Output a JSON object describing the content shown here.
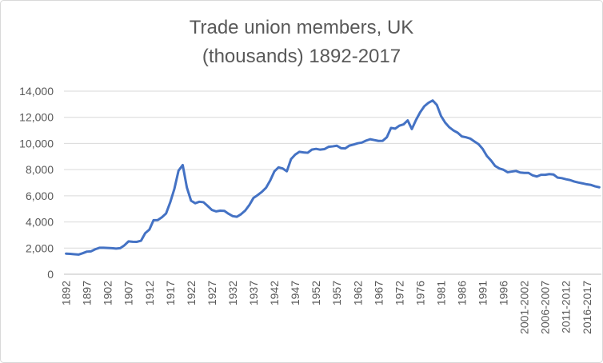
{
  "chart_data": {
    "type": "line",
    "title": [
      "Trade union members, UK",
      "(thousands) 1892-2017"
    ],
    "categories": [
      "1892",
      null,
      null,
      null,
      null,
      "1897",
      null,
      null,
      null,
      null,
      "1902",
      null,
      null,
      null,
      null,
      "1907",
      null,
      null,
      null,
      null,
      "1912",
      null,
      null,
      null,
      null,
      "1917",
      null,
      null,
      null,
      null,
      "1922",
      null,
      null,
      null,
      null,
      "1927",
      null,
      null,
      null,
      null,
      "1932",
      null,
      null,
      null,
      null,
      "1937",
      null,
      null,
      null,
      null,
      "1942",
      null,
      null,
      null,
      null,
      "1947",
      null,
      null,
      null,
      null,
      "1952",
      null,
      null,
      null,
      null,
      "1957",
      null,
      null,
      null,
      null,
      "1962",
      null,
      null,
      null,
      null,
      "1967",
      null,
      null,
      null,
      null,
      "1972",
      null,
      null,
      null,
      null,
      "1976",
      null,
      null,
      null,
      null,
      "1981",
      null,
      null,
      null,
      null,
      "1986",
      null,
      null,
      null,
      null,
      "1991",
      null,
      null,
      null,
      null,
      "1996",
      null,
      null,
      null,
      null,
      "2001-2002",
      null,
      null,
      null,
      null,
      "2006-2007",
      null,
      null,
      null,
      null,
      "2011-2012",
      null,
      null,
      null,
      null,
      "2016-2017",
      null,
      null,
      null
    ],
    "series": [
      {
        "color": "#4472c4",
        "values": [
          1576,
          1559,
          1530,
          1504,
          1608,
          1731,
          1752,
          1911,
          2022,
          2025,
          2013,
          1994,
          1967,
          1997,
          2210,
          2513,
          2485,
          2477,
          2565,
          3139,
          3416,
          4135,
          4145,
          4359,
          4644,
          5499,
          6533,
          7926,
          8348,
          6633,
          5625,
          5429,
          5544,
          5506,
          5219,
          4919,
          4806,
          4858,
          4842,
          4624,
          4444,
          4392,
          4590,
          4867,
          5295,
          5842,
          6053,
          6298,
          6613,
          7165,
          7867,
          8174,
          8087,
          7875,
          8803,
          9145,
          9362,
          9318,
          9289,
          9530,
          9588,
          9527,
          9566,
          9741,
          9778,
          9829,
          9639,
          9623,
          9835,
          9916,
          10014,
          10067,
          10218,
          10325,
          10259,
          10194,
          10200,
          10479,
          11187,
          11135,
          11359,
          11456,
          11764,
          11100,
          11800,
          12386,
          12846,
          13112,
          13289,
          12947,
          12106,
          11593,
          11236,
          10994,
          10821,
          10539,
          10475,
          10376,
          10158,
          9947,
          9585,
          9048,
          8700,
          8278,
          8089,
          7987,
          7801,
          7852,
          7898,
          7779,
          7751,
          7750,
          7559,
          7473,
          7602,
          7602,
          7656,
          7627,
          7389,
          7347,
          7264,
          7199,
          7086,
          7011,
          6948,
          6875,
          6830,
          6720,
          6650
        ]
      }
    ],
    "ylim": [
      0,
      14000
    ],
    "yticks": [
      0,
      {
        "value": 2000,
        "label": "2,000"
      },
      {
        "value": 4000,
        "label": "4,000"
      },
      {
        "value": 6000,
        "label": "6,000"
      },
      {
        "value": 8000,
        "label": "8,000"
      },
      {
        "value": 10000,
        "label": "10,000"
      },
      {
        "value": 12000,
        "label": "12,000"
      },
      {
        "value": 14000,
        "label": "14,000"
      }
    ],
    "grid": true
  }
}
